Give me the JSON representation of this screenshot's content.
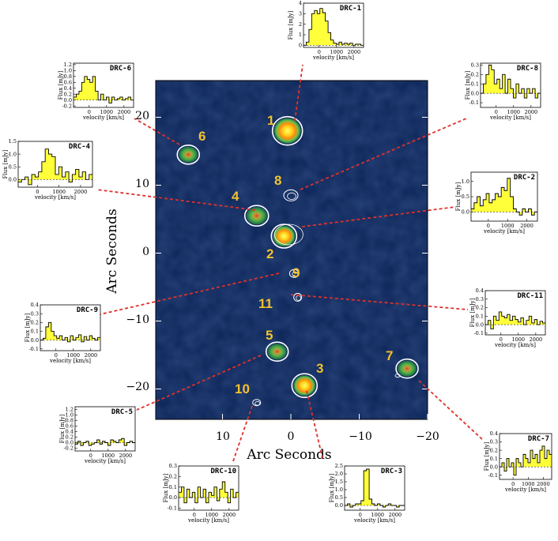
{
  "figure": {
    "x_axis_label": "Arc Seconds",
    "y_axis_label": "Arc Seconds",
    "x_ticks": [
      "10",
      "0",
      "−10",
      "−20"
    ],
    "y_ticks": [
      "20",
      "10",
      "0",
      "−10",
      "−20"
    ],
    "map_background": "#0c2458",
    "contour_color": "#ffffff",
    "label_color": "#f2c12e",
    "leader_color": "#e0302a",
    "spectrum_fill": "#ffff3a"
  },
  "chart_data": [
    {
      "type": "scatter",
      "name": "Sky map",
      "xlim": [
        20,
        -20
      ],
      "ylim": [
        -25,
        25
      ],
      "sources": [
        {
          "label": "1",
          "x": 0.5,
          "y": 18.0,
          "brightness": "bright"
        },
        {
          "label": "2",
          "x": 1.0,
          "y": 2.5,
          "brightness": "bright"
        },
        {
          "label": "3",
          "x": -2.0,
          "y": -19.5,
          "brightness": "bright"
        },
        {
          "label": "4",
          "x": 5.0,
          "y": 5.5,
          "brightness": "medium"
        },
        {
          "label": "5",
          "x": 2.0,
          "y": -14.5,
          "brightness": "medium"
        },
        {
          "label": "6",
          "x": 15.0,
          "y": 14.5,
          "brightness": "medium"
        },
        {
          "label": "7",
          "x": -17.0,
          "y": -17.0,
          "brightness": "medium"
        },
        {
          "label": "8",
          "x": 0.0,
          "y": 8.5,
          "brightness": "contour"
        },
        {
          "label": "9",
          "x": -0.5,
          "y": -3.0,
          "brightness": "contour"
        },
        {
          "label": "10",
          "x": 5.0,
          "y": -22.0,
          "brightness": "contour"
        },
        {
          "label": "11",
          "x": -1.0,
          "y": -6.5,
          "brightness": "contour"
        }
      ]
    },
    {
      "type": "bar",
      "title": "DRC-1",
      "xlabel": "velocity [km/s]",
      "ylabel": "Flux [mJy]",
      "ylim": [
        -0.2,
        4.0
      ],
      "yticks": [
        "4",
        "3",
        "2",
        "1",
        "0"
      ],
      "xticks": [
        "0",
        "1000",
        "2000"
      ],
      "values": [
        0.0,
        0.3,
        1.5,
        3.0,
        3.3,
        3.0,
        3.5,
        3.1,
        2.3,
        1.2,
        0.5,
        0.2,
        0.1,
        0.3,
        0.1,
        0.2,
        0.1,
        0.2,
        0.0,
        0.1,
        0.1,
        0.0
      ]
    },
    {
      "type": "bar",
      "title": "DRC-2",
      "xlabel": "velocity [km/s]",
      "ylabel": "Flux [mJy]",
      "ylim": [
        -0.3,
        1.3
      ],
      "yticks": [
        "1.0",
        "0.5",
        "0.0"
      ],
      "xticks": [
        "0",
        "1000",
        "2000"
      ],
      "values": [
        0.1,
        0.3,
        0.5,
        0.2,
        0.4,
        0.6,
        0.3,
        0.4,
        0.6,
        0.5,
        0.8,
        0.7,
        1.1,
        0.5,
        0.1,
        0.0,
        -0.1,
        0.1,
        0.0,
        0.1,
        -0.1,
        0.0
      ]
    },
    {
      "type": "bar",
      "title": "DRC-3",
      "xlabel": "velocity [km/s]",
      "ylabel": "Flux [mJy]",
      "ylim": [
        -0.3,
        2.5
      ],
      "yticks": [
        "2.5",
        "2.0",
        "1.5",
        "1.0",
        "0.5",
        "0.0"
      ],
      "xticks": [
        "0",
        "1000",
        "2000"
      ],
      "values": [
        0.0,
        0.1,
        -0.1,
        0.0,
        0.1,
        0.1,
        0.3,
        2.2,
        2.3,
        0.4,
        0.1,
        0.0,
        0.1,
        0.0,
        -0.1,
        0.0,
        0.1,
        0.0,
        0.0,
        -0.1,
        0.0,
        0.0
      ]
    },
    {
      "type": "bar",
      "title": "DRC-4",
      "xlabel": "velocity [km/s]",
      "ylabel": "Flux [mJy]",
      "ylim": [
        -0.3,
        1.5
      ],
      "yticks": [
        "1.5",
        "1.0",
        "0.5",
        "0.0"
      ],
      "xticks": [
        "0",
        "1000",
        "2000"
      ],
      "values": [
        -0.1,
        0.0,
        0.1,
        -0.2,
        0.2,
        0.1,
        0.3,
        0.7,
        1.2,
        1.0,
        0.9,
        0.2,
        0.5,
        0.1,
        0.3,
        -0.1,
        0.2,
        0.4,
        0.1,
        0.3,
        0.0,
        0.2
      ]
    },
    {
      "type": "bar",
      "title": "DRC-5",
      "xlabel": "velocity [km/s]",
      "ylabel": "Flux [mJy]",
      "ylim": [
        -0.3,
        1.3
      ],
      "yticks": [
        "1.2",
        "1.0",
        "0.8",
        "0.6",
        "0.4",
        "0.2",
        "0.0",
        "-0.2"
      ],
      "xticks": [
        "0",
        "1000",
        "2000"
      ],
      "values": [
        -0.05,
        0.05,
        -0.1,
        0.0,
        0.05,
        -0.1,
        -0.05,
        0.0,
        0.1,
        -0.05,
        0.05,
        0.0,
        -0.1,
        0.1,
        0.05,
        0.0,
        0.1,
        0.15,
        -0.1,
        0.0,
        0.05,
        0.0
      ]
    },
    {
      "type": "bar",
      "title": "DRC-6",
      "xlabel": "velocity [km/s]",
      "ylabel": "Flux [mJy]",
      "ylim": [
        -0.25,
        1.25
      ],
      "yticks": [
        "1.2",
        "1.0",
        "0.8",
        "0.6",
        "0.4",
        "0.2",
        "0.0",
        "-0.2"
      ],
      "xticks": [
        "0",
        "1000",
        "2000"
      ],
      "values": [
        0.1,
        0.2,
        0.3,
        0.6,
        0.8,
        0.7,
        0.6,
        0.8,
        0.3,
        0.0,
        0.2,
        0.0,
        0.1,
        -0.1,
        0.1,
        0.0,
        0.05,
        0.1,
        0.0,
        0.05,
        0.1,
        0.0
      ]
    },
    {
      "type": "bar",
      "title": "DRC-7",
      "xlabel": "velocity [km/s]",
      "ylabel": "Flux [mJy]",
      "ylim": [
        -0.15,
        0.4
      ],
      "yticks": [
        "0.4",
        "0.3",
        "0.2",
        "0.1",
        "0.0",
        "-0.1"
      ],
      "xticks": [
        "0",
        "1000",
        "2000"
      ],
      "values": [
        0.0,
        0.05,
        -0.05,
        0.1,
        0.0,
        0.05,
        -0.1,
        0.1,
        0.05,
        0.0,
        0.15,
        0.1,
        0.05,
        0.2,
        0.1,
        0.15,
        0.05,
        0.2,
        0.25,
        0.1,
        0.2,
        0.15
      ]
    },
    {
      "type": "bar",
      "title": "DRC-8",
      "xlabel": "velocity [km/s]",
      "ylabel": "Flux [mJy]",
      "ylim": [
        -0.15,
        0.32
      ],
      "yticks": [
        "0.3",
        "0.2",
        "0.1",
        "0.0",
        "-0.1"
      ],
      "xticks": [
        "0",
        "1000",
        "2000"
      ],
      "values": [
        0.0,
        0.1,
        0.2,
        0.3,
        0.25,
        0.1,
        0.15,
        0.05,
        0.2,
        0.0,
        0.15,
        0.05,
        -0.05,
        0.1,
        0.0,
        0.05,
        -0.05,
        0.05,
        0.0,
        0.05,
        -0.05,
        0.0
      ]
    },
    {
      "type": "bar",
      "title": "DRC-9",
      "xlabel": "velocity [km/s]",
      "ylabel": "Flux [mJy]",
      "ylim": [
        -0.12,
        0.4
      ],
      "yticks": [
        "0.4",
        "0.3",
        "0.2",
        "0.1",
        "0.0",
        "-0.1"
      ],
      "xticks": [
        "0",
        "1000",
        "2000"
      ],
      "values": [
        0.0,
        0.02,
        0.15,
        0.2,
        0.1,
        0.05,
        0.02,
        0.05,
        0.0,
        0.03,
        -0.02,
        0.05,
        0.0,
        0.03,
        0.06,
        -0.02,
        0.04,
        0.0,
        0.05,
        0.02,
        0.0,
        0.03
      ]
    },
    {
      "type": "bar",
      "title": "DRC-10",
      "xlabel": "velocity [km/s]",
      "ylabel": "Flux [mJy]",
      "ylim": [
        -0.12,
        0.3
      ],
      "yticks": [
        "0.3",
        "0.2",
        "0.1",
        "0.0",
        "-0.1"
      ],
      "xticks": [
        "0",
        "1000",
        "2000"
      ],
      "values": [
        0.05,
        0.1,
        -0.05,
        0.08,
        0.0,
        0.05,
        -0.05,
        0.1,
        0.0,
        0.08,
        -0.05,
        0.05,
        0.02,
        0.1,
        -0.03,
        0.08,
        0.15,
        0.05,
        -0.05,
        0.08,
        0.0,
        0.05
      ]
    },
    {
      "type": "bar",
      "title": "DRC-11",
      "xlabel": "velocity [km/s]",
      "ylabel": "Flux [mJy]",
      "ylim": [
        -0.12,
        0.4
      ],
      "yticks": [
        "0.4",
        "0.3",
        "0.2",
        "0.1",
        "0.0",
        "-0.1"
      ],
      "xticks": [
        "0",
        "1000",
        "2000"
      ],
      "values": [
        0.0,
        0.05,
        -0.05,
        0.1,
        0.05,
        0.15,
        0.1,
        0.08,
        0.12,
        0.05,
        0.1,
        0.06,
        0.03,
        0.08,
        0.0,
        0.05,
        0.1,
        0.02,
        0.06,
        0.0,
        0.04,
        0.02
      ]
    }
  ]
}
